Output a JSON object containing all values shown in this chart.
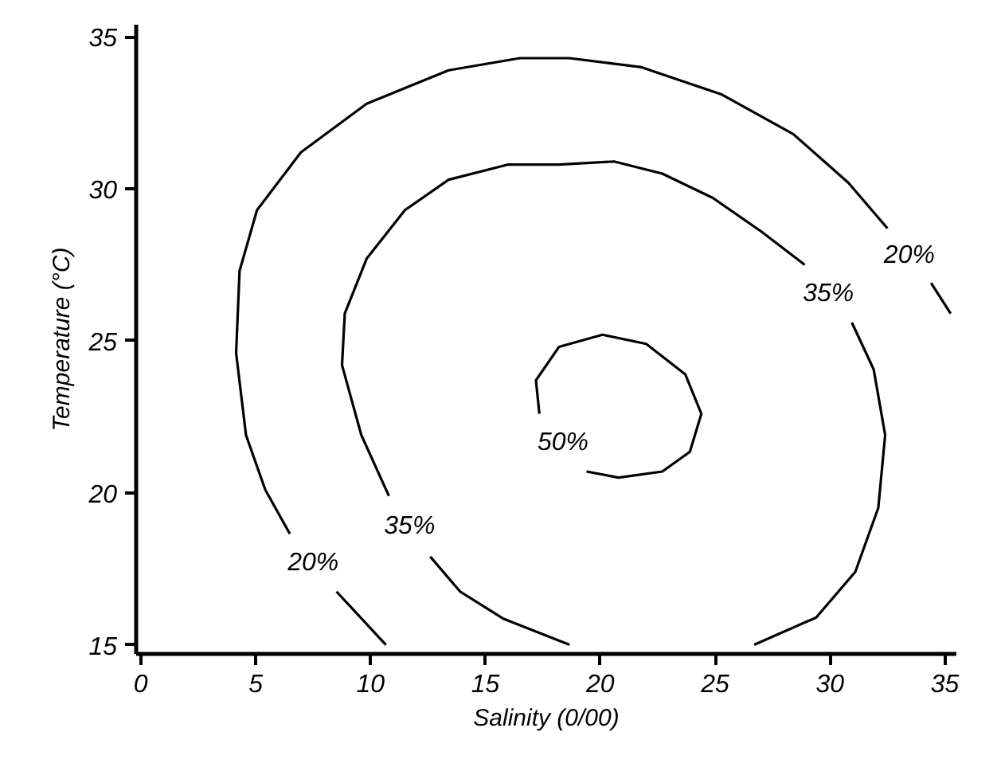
{
  "chart_data": {
    "type": "line",
    "xlabel": "Salinity (0/00)",
    "ylabel": "Temperature (°C)",
    "xlim": [
      -0.2,
      35.5
    ],
    "ylim": [
      14.7,
      35.4
    ],
    "xticks": [
      0,
      5,
      10,
      15,
      20,
      25,
      30,
      35
    ],
    "yticks": [
      15,
      20,
      25,
      30,
      35
    ],
    "grid": false,
    "line_style": "solid",
    "series": [
      {
        "name": "20%",
        "color": "#000000",
        "x": [
          10.67,
          8.52,
          7.5,
          6.49,
          5.42,
          4.58,
          4.15,
          4.3,
          5.06,
          6.97,
          9.83,
          13.4,
          16.5,
          18.66,
          21.8,
          25.3,
          28.4,
          30.8,
          32.5,
          33.5,
          34.4,
          35.25
        ],
        "values": [
          15.0,
          16.75,
          null,
          18.65,
          20.1,
          21.9,
          24.6,
          27.3,
          29.3,
          31.2,
          32.8,
          33.9,
          34.3,
          34.3,
          34.0,
          33.1,
          31.8,
          30.2,
          28.7,
          null,
          26.9,
          25.9
        ]
      },
      {
        "name": "35%",
        "color": "#000000",
        "x": [
          18.66,
          15.8,
          13.9,
          12.6,
          11.7,
          10.8,
          9.6,
          8.76,
          8.88,
          9.83,
          11.5,
          13.4,
          16.0,
          18.2,
          20.6,
          22.7,
          24.9,
          27.0,
          28.9,
          30.0,
          30.95,
          31.9,
          32.4,
          32.1,
          31.1,
          29.4,
          26.7
        ],
        "values": [
          15.0,
          15.85,
          16.75,
          17.9,
          null,
          19.9,
          21.9,
          24.2,
          25.9,
          27.7,
          29.3,
          30.3,
          30.8,
          30.8,
          30.9,
          30.5,
          29.7,
          28.6,
          27.5,
          null,
          25.6,
          24.06,
          21.9,
          19.5,
          17.4,
          15.9,
          15.0
        ]
      },
      {
        "name": "50%",
        "color": "#000000",
        "x": [
          17.35,
          17.2,
          18.2,
          20.1,
          22.0,
          23.7,
          24.4,
          23.9,
          22.7,
          20.8,
          19.4
        ],
        "values": [
          22.6,
          23.7,
          24.8,
          25.2,
          24.9,
          23.9,
          22.6,
          21.35,
          20.7,
          20.5,
          20.7
        ]
      }
    ]
  }
}
